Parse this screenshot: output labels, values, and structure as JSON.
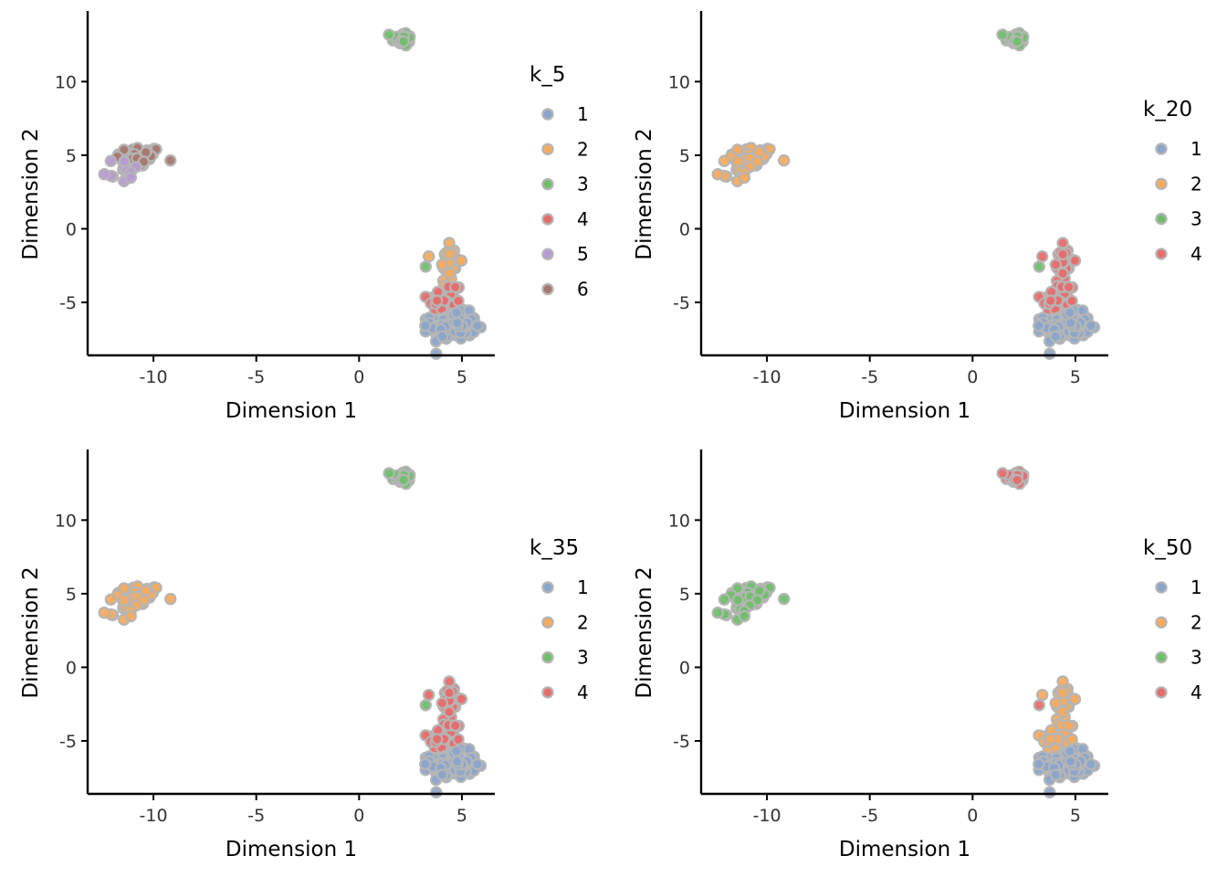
{
  "palette": {
    "1": "#8AA5CC",
    "2": "#F5AB5E",
    "3": "#6FBF6A",
    "4": "#E86B6B",
    "5": "#B79AD3",
    "6": "#A8786E",
    "outline": "#B5B5B5"
  },
  "chart_data": [
    {
      "type": "scatter",
      "xlabel": "Dimension 1",
      "ylabel": "Dimension 2",
      "xlim": [
        -13.2,
        6.6
      ],
      "ylim": [
        -8.6,
        14.8
      ],
      "xticks": [
        -10,
        -5,
        0,
        5
      ],
      "yticks": [
        -5,
        0,
        5,
        10
      ],
      "legend": {
        "title": "k_5",
        "entries": [
          "1",
          "2",
          "3",
          "4",
          "5",
          "6"
        ],
        "position": "right"
      },
      "clusters": {
        "A": "6",
        "A2": "5",
        "B": "3",
        "C_top": "2",
        "C_mid": "4",
        "C_bot": "1",
        "C_out": "3"
      }
    },
    {
      "type": "scatter",
      "xlabel": "Dimension 1",
      "ylabel": "Dimension 2",
      "xlim": [
        -13.2,
        6.6
      ],
      "ylim": [
        -8.6,
        14.8
      ],
      "xticks": [
        -10,
        -5,
        0,
        5
      ],
      "yticks": [
        -5,
        0,
        5,
        10
      ],
      "legend": {
        "title": "k_20",
        "entries": [
          "1",
          "2",
          "3",
          "4"
        ],
        "position": "right"
      },
      "clusters": {
        "A": "2",
        "A2": "2",
        "B": "3",
        "C_top": "4",
        "C_mid": "4",
        "C_bot": "1",
        "C_out": "3"
      }
    },
    {
      "type": "scatter",
      "xlabel": "Dimension 1",
      "ylabel": "Dimension 2",
      "xlim": [
        -13.2,
        6.6
      ],
      "ylim": [
        -8.6,
        14.8
      ],
      "xticks": [
        -10,
        -5,
        0,
        5
      ],
      "yticks": [
        -5,
        0,
        5,
        10
      ],
      "legend": {
        "title": "k_35",
        "entries": [
          "1",
          "2",
          "3",
          "4"
        ],
        "position": "right"
      },
      "clusters": {
        "A": "2",
        "A2": "2",
        "B": "3",
        "C_top": "4",
        "C_mid": "4",
        "C_bot": "1",
        "C_out": "3"
      }
    },
    {
      "type": "scatter",
      "xlabel": "Dimension 1",
      "ylabel": "Dimension 2",
      "xlim": [
        -13.2,
        6.6
      ],
      "ylim": [
        -8.6,
        14.8
      ],
      "xticks": [
        -10,
        -5,
        0,
        5
      ],
      "yticks": [
        -5,
        0,
        5,
        10
      ],
      "legend": {
        "title": "k_50",
        "entries": [
          "1",
          "2",
          "3",
          "4"
        ],
        "position": "right"
      },
      "clusters": {
        "A": "3",
        "A2": "3",
        "B": "4",
        "C_top": "2",
        "C_mid": "2",
        "C_bot": "1",
        "C_out": "4"
      }
    }
  ]
}
